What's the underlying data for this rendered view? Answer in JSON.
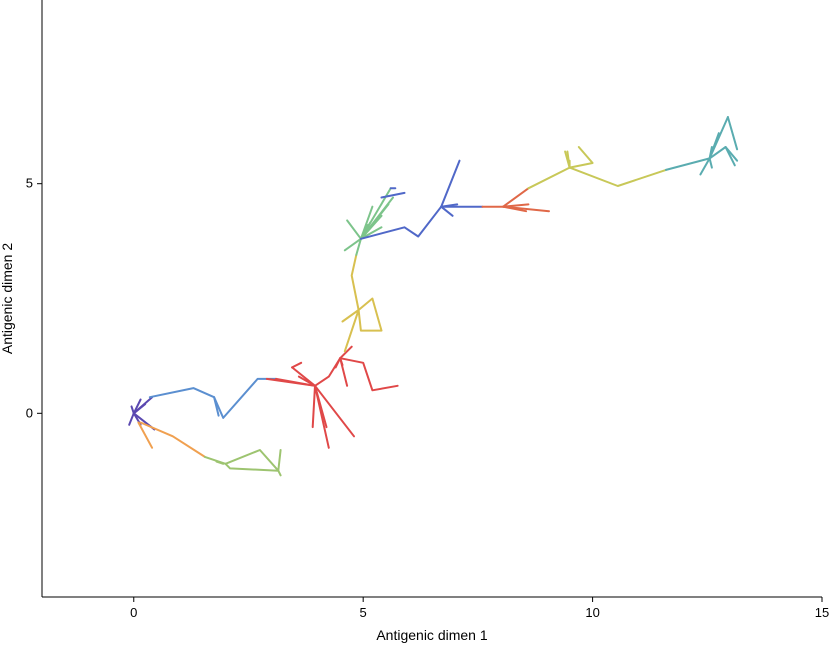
{
  "chart_data": {
    "type": "line",
    "title": "",
    "xlabel": "Antigenic dimen 1",
    "ylabel": "Antigenic dimen 2",
    "xlim": [
      -2,
      15
    ],
    "ylim": [
      -4,
      9
    ],
    "xticks": [
      0,
      5,
      10,
      15
    ],
    "yticks": [
      0,
      5
    ],
    "grid": false,
    "legend": "none",
    "series": [
      {
        "color": "#5a48b0",
        "segments": [
          [
            [
              0,
              0
            ],
            [
              0.4,
              0.35
            ]
          ],
          [
            [
              0,
              0
            ],
            [
              -0.1,
              -0.25
            ]
          ],
          [
            [
              0,
              0
            ],
            [
              0.15,
              0.3
            ]
          ],
          [
            [
              0,
              0
            ],
            [
              0.15,
              -0.25
            ]
          ],
          [
            [
              0,
              0
            ],
            [
              0.45,
              -0.35
            ]
          ],
          [
            [
              0,
              0
            ],
            [
              0.25,
              0.2
            ]
          ],
          [
            [
              0,
              0
            ],
            [
              -0.05,
              0.15
            ]
          ]
        ]
      },
      {
        "color": "#5b8fd0",
        "segments": [
          [
            [
              0.35,
              0.35
            ],
            [
              1.3,
              0.55
            ],
            [
              1.75,
              0.35
            ],
            [
              1.85,
              -0.05
            ]
          ],
          [
            [
              1.75,
              0.35
            ],
            [
              1.95,
              -0.1
            ],
            [
              2.7,
              0.75
            ],
            [
              3.1,
              0.75
            ]
          ]
        ]
      },
      {
        "color": "#f0a050",
        "segments": [
          [
            [
              0.1,
              -0.2
            ],
            [
              0.4,
              -0.75
            ]
          ],
          [
            [
              0.15,
              -0.2
            ],
            [
              0.85,
              -0.5
            ],
            [
              1.55,
              -0.95
            ]
          ]
        ]
      },
      {
        "color": "#9dc470",
        "segments": [
          [
            [
              1.55,
              -0.95
            ],
            [
              2.0,
              -1.1
            ],
            [
              2.75,
              -0.8
            ],
            [
              3.15,
              -1.25
            ],
            [
              3.2,
              -0.8
            ]
          ],
          [
            [
              2.0,
              -1.1
            ],
            [
              2.1,
              -1.2
            ],
            [
              3.15,
              -1.25
            ],
            [
              3.2,
              -1.35
            ]
          ],
          [
            [
              1.95,
              -1.1
            ],
            [
              1.8,
              -1.05
            ]
          ]
        ]
      },
      {
        "color": "#e04848",
        "segments": [
          [
            [
              2.9,
              0.75
            ],
            [
              3.95,
              0.6
            ],
            [
              4.25,
              -0.75
            ]
          ],
          [
            [
              3.95,
              0.6
            ],
            [
              4.2,
              -0.3
            ]
          ],
          [
            [
              3.95,
              0.6
            ],
            [
              4.8,
              -0.5
            ]
          ],
          [
            [
              3.95,
              0.6
            ],
            [
              3.9,
              -0.3
            ]
          ],
          [
            [
              3.95,
              0.6
            ],
            [
              4.25,
              0.8
            ],
            [
              4.5,
              1.2
            ],
            [
              4.75,
              1.45
            ]
          ],
          [
            [
              4.5,
              1.2
            ],
            [
              4.4,
              1.0
            ]
          ],
          [
            [
              4.5,
              1.2
            ],
            [
              4.65,
              0.6
            ]
          ],
          [
            [
              4.5,
              1.2
            ],
            [
              4.55,
              1.05
            ]
          ],
          [
            [
              4.5,
              1.2
            ],
            [
              5.0,
              1.1
            ],
            [
              5.2,
              0.5
            ],
            [
              5.75,
              0.6
            ]
          ],
          [
            [
              3.95,
              0.6
            ],
            [
              3.45,
              1.0
            ]
          ],
          [
            [
              3.95,
              0.6
            ],
            [
              3.6,
              0.8
            ]
          ],
          [
            [
              3.95,
              0.6
            ],
            [
              3.1,
              0.75
            ]
          ],
          [
            [
              3.45,
              1.0
            ],
            [
              3.65,
              1.1
            ]
          ]
        ]
      },
      {
        "color": "#d8c050",
        "segments": [
          [
            [
              4.6,
              1.35
            ],
            [
              4.9,
              2.25
            ],
            [
              5.2,
              2.5
            ],
            [
              5.4,
              1.8
            ],
            [
              4.95,
              1.8
            ],
            [
              4.9,
              2.25
            ],
            [
              4.55,
              2.0
            ]
          ],
          [
            [
              4.9,
              2.25
            ],
            [
              4.75,
              3.0
            ],
            [
              4.85,
              3.45
            ]
          ]
        ]
      },
      {
        "color": "#7dc48b",
        "segments": [
          [
            [
              4.85,
              3.45
            ],
            [
              4.95,
              3.8
            ],
            [
              5.15,
              4.15
            ]
          ],
          [
            [
              4.95,
              3.8
            ],
            [
              4.65,
              4.2
            ]
          ],
          [
            [
              4.95,
              3.8
            ],
            [
              4.6,
              3.55
            ]
          ],
          [
            [
              4.95,
              3.8
            ],
            [
              5.1,
              4.1
            ]
          ],
          [
            [
              4.95,
              3.8
            ],
            [
              5.3,
              4.2
            ]
          ],
          [
            [
              4.95,
              3.8
            ],
            [
              5.4,
              4.3
            ]
          ],
          [
            [
              4.95,
              3.8
            ],
            [
              5.55,
              4.55
            ]
          ],
          [
            [
              4.95,
              3.8
            ],
            [
              5.65,
              4.7
            ]
          ],
          [
            [
              4.95,
              3.8
            ],
            [
              5.4,
              4.05
            ]
          ],
          [
            [
              4.95,
              3.8
            ],
            [
              5.2,
              4.5
            ]
          ],
          [
            [
              4.95,
              3.8
            ],
            [
              5.6,
              4.9
            ]
          ]
        ]
      },
      {
        "color": "#5068c8",
        "segments": [
          [
            [
              4.95,
              3.8
            ],
            [
              5.9,
              4.05
            ],
            [
              6.2,
              3.85
            ],
            [
              6.7,
              4.5
            ],
            [
              7.05,
              4.55
            ]
          ],
          [
            [
              6.7,
              4.5
            ],
            [
              7.1,
              5.5
            ]
          ],
          [
            [
              6.7,
              4.5
            ],
            [
              6.95,
              4.3
            ]
          ],
          [
            [
              6.7,
              4.5
            ],
            [
              7.3,
              4.5
            ],
            [
              7.6,
              4.5
            ]
          ],
          [
            [
              5.4,
              4.7
            ],
            [
              5.9,
              4.8
            ]
          ],
          [
            [
              5.6,
              4.9
            ],
            [
              5.7,
              4.9
            ]
          ]
        ]
      },
      {
        "color": "#e06848",
        "segments": [
          [
            [
              7.6,
              4.5
            ],
            [
              8.05,
              4.5
            ],
            [
              8.6,
              4.9
            ]
          ],
          [
            [
              8.05,
              4.5
            ],
            [
              9.05,
              4.4
            ]
          ],
          [
            [
              8.05,
              4.5
            ],
            [
              8.55,
              4.4
            ]
          ],
          [
            [
              8.05,
              4.5
            ],
            [
              8.6,
              4.55
            ]
          ]
        ]
      },
      {
        "color": "#c8c858",
        "segments": [
          [
            [
              8.6,
              4.9
            ],
            [
              9.5,
              5.35
            ],
            [
              10.0,
              5.45
            ],
            [
              9.7,
              5.8
            ]
          ],
          [
            [
              9.5,
              5.35
            ],
            [
              9.45,
              5.7
            ]
          ],
          [
            [
              9.5,
              5.35
            ],
            [
              9.4,
              5.7
            ]
          ],
          [
            [
              9.5,
              5.35
            ],
            [
              9.5,
              5.5
            ]
          ],
          [
            [
              9.5,
              5.35
            ],
            [
              10.55,
              4.95
            ],
            [
              11.6,
              5.3
            ]
          ]
        ]
      },
      {
        "color": "#5aacb0",
        "segments": [
          [
            [
              11.6,
              5.3
            ],
            [
              12.55,
              5.55
            ],
            [
              12.9,
              5.8
            ],
            [
              13.1,
              5.4
            ]
          ],
          [
            [
              12.55,
              5.55
            ],
            [
              12.95,
              6.45
            ]
          ],
          [
            [
              12.55,
              5.55
            ],
            [
              12.35,
              5.2
            ]
          ],
          [
            [
              12.55,
              5.55
            ],
            [
              12.6,
              5.8
            ]
          ],
          [
            [
              12.55,
              5.55
            ],
            [
              12.6,
              5.35
            ]
          ],
          [
            [
              12.55,
              5.55
            ],
            [
              12.75,
              6.1
            ]
          ],
          [
            [
              12.9,
              5.8
            ],
            [
              13.15,
              5.5
            ]
          ],
          [
            [
              12.95,
              6.45
            ],
            [
              13.15,
              5.75
            ]
          ]
        ]
      }
    ]
  }
}
